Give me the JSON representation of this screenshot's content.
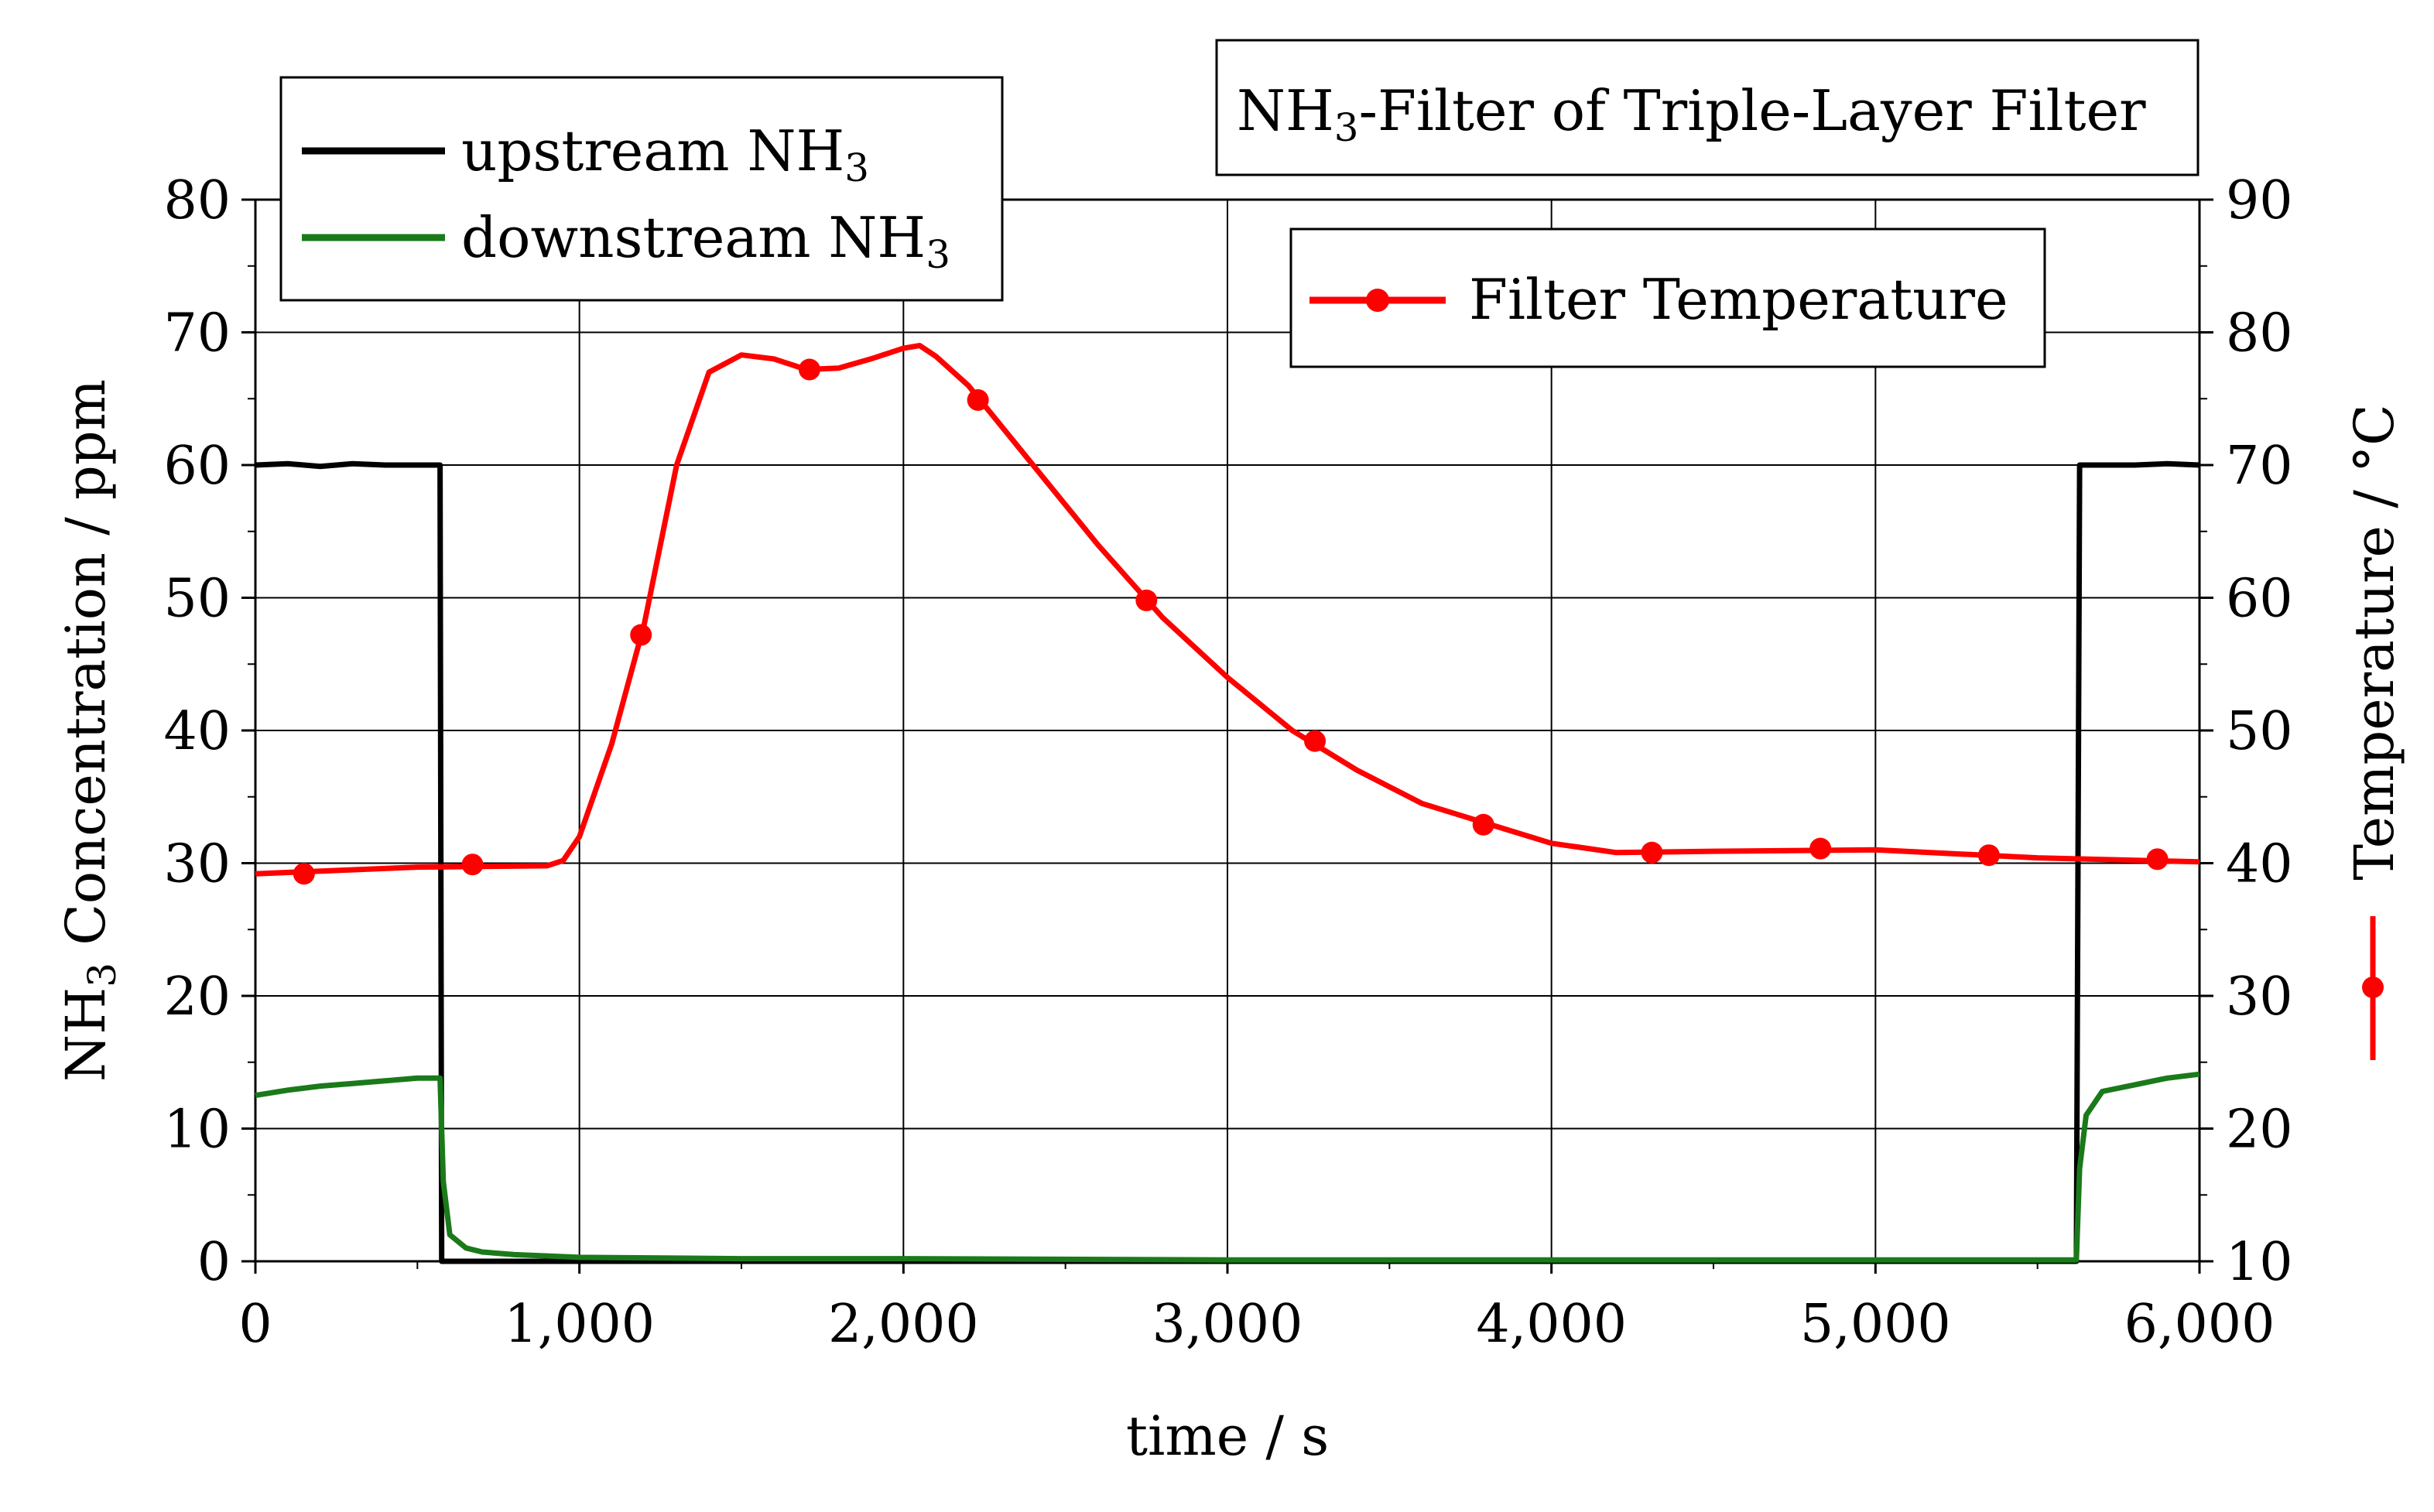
{
  "chart_data": {
    "type": "line",
    "title": "NH3-Filter of Triple-Layer Filter",
    "title_main": "NH",
    "title_sub": "3",
    "title_rest": "-Filter of Triple-Layer Filter",
    "xlabel": "time / s",
    "ylabel_left": {
      "main": "NH",
      "sub": "3",
      "rest": " Concentration / ppm"
    },
    "ylabel_right": "Temperature / °C",
    "xlim": [
      0,
      6000
    ],
    "ylim_left": [
      0,
      80
    ],
    "ylim_right": [
      10,
      90
    ],
    "x_ticks": [
      0,
      1000,
      2000,
      3000,
      4000,
      5000,
      6000
    ],
    "x_tick_labels": [
      "0",
      "1,000",
      "2,000",
      "3,000",
      "4,000",
      "5,000",
      "6,000"
    ],
    "y_ticks_left": [
      0,
      10,
      20,
      30,
      40,
      50,
      60,
      70,
      80
    ],
    "y_tick_labels_left": [
      "0",
      "10",
      "20",
      "30",
      "40",
      "50",
      "60",
      "70",
      "80"
    ],
    "y_ticks_right": [
      10,
      20,
      30,
      40,
      50,
      60,
      70,
      80,
      90
    ],
    "y_tick_labels_right": [
      "10",
      "20",
      "30",
      "40",
      "50",
      "60",
      "70",
      "80",
      "90"
    ],
    "grid": true,
    "legend_left_placement": "top-left",
    "legend_right_placement": "top-right",
    "series": [
      {
        "name": "upstream NH3",
        "label_main": "upstream NH",
        "label_sub": "3",
        "axis": "left",
        "color": "#000000",
        "x": [
          0,
          100,
          200,
          300,
          400,
          500,
          570,
          575,
          580,
          5620,
          5630,
          5700,
          5800,
          5900,
          6000
        ],
        "y": [
          60,
          60.1,
          59.9,
          60.1,
          60,
          60,
          60,
          0,
          0,
          0,
          60,
          60,
          60,
          60.1,
          60
        ]
      },
      {
        "name": "downstream NH3",
        "label_main": "downstream NH",
        "label_sub": "3",
        "axis": "left",
        "color": "#1a7a1a",
        "x": [
          0,
          100,
          200,
          300,
          400,
          500,
          570,
          580,
          600,
          650,
          700,
          800,
          1000,
          1500,
          2000,
          3000,
          4000,
          5000,
          5500,
          5620,
          5630,
          5650,
          5700,
          5800,
          5900,
          6000
        ],
        "y": [
          12.5,
          12.9,
          13.2,
          13.4,
          13.6,
          13.8,
          13.8,
          6,
          2,
          1,
          0.7,
          0.5,
          0.3,
          0.2,
          0.2,
          0.1,
          0.1,
          0.1,
          0.1,
          0.1,
          7,
          11,
          12.8,
          13.3,
          13.8,
          14.1
        ]
      },
      {
        "name": "Filter Temperature",
        "axis": "right",
        "color": "#ff0000",
        "x": [
          0,
          500,
          900,
          950,
          1000,
          1100,
          1200,
          1300,
          1400,
          1500,
          1600,
          1700,
          1800,
          1900,
          2000,
          2050,
          2100,
          2200,
          2400,
          2600,
          2800,
          3000,
          3200,
          3400,
          3600,
          3800,
          4000,
          4200,
          4500,
          5000,
          5500,
          6000
        ],
        "y": [
          39.2,
          39.7,
          39.8,
          40.2,
          42,
          49,
          58,
          70,
          77,
          78.3,
          78,
          77.2,
          77.3,
          78,
          78.8,
          79,
          78.2,
          76,
          70,
          64,
          58.5,
          54,
          50,
          47,
          44.5,
          43,
          41.5,
          40.8,
          40.9,
          41,
          40.4,
          40.1
        ],
        "marker_x": [
          150,
          670,
          1190,
          1710,
          2230,
          2750,
          3270,
          3790,
          4310,
          4830,
          5350,
          5870
        ],
        "marker_y": [
          39.2,
          39.9,
          57.2,
          77.2,
          74.9,
          59.8,
          49.2,
          42.9,
          40.8,
          41.1,
          40.6,
          40.3
        ]
      }
    ]
  }
}
